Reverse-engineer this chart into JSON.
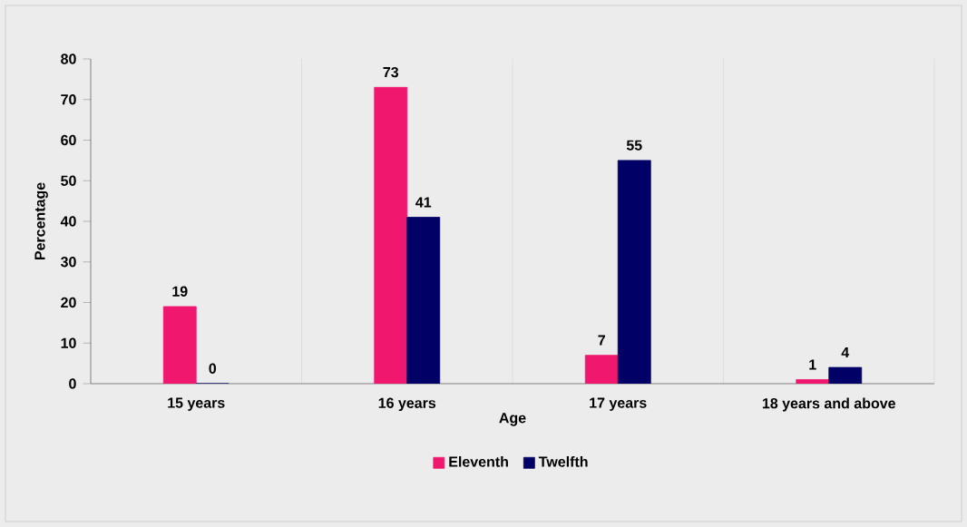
{
  "chart_data": {
    "type": "bar",
    "xlabel": "Age",
    "ylabel": "Percentage",
    "categories": [
      "15 years",
      "16 years",
      "17 years",
      "18 years and above"
    ],
    "series": [
      {
        "name": "Eleventh",
        "color": "#f0186e",
        "values": [
          19,
          73,
          7,
          1
        ]
      },
      {
        "name": "Twelfth",
        "color": "#000066",
        "values": [
          0,
          41,
          55,
          4
        ]
      }
    ],
    "ylim": [
      0,
      80
    ],
    "yticks": [
      0,
      10,
      20,
      30,
      40,
      50,
      60,
      70,
      80
    ],
    "grid": "x",
    "legend": "bottom",
    "data_labels": true
  }
}
